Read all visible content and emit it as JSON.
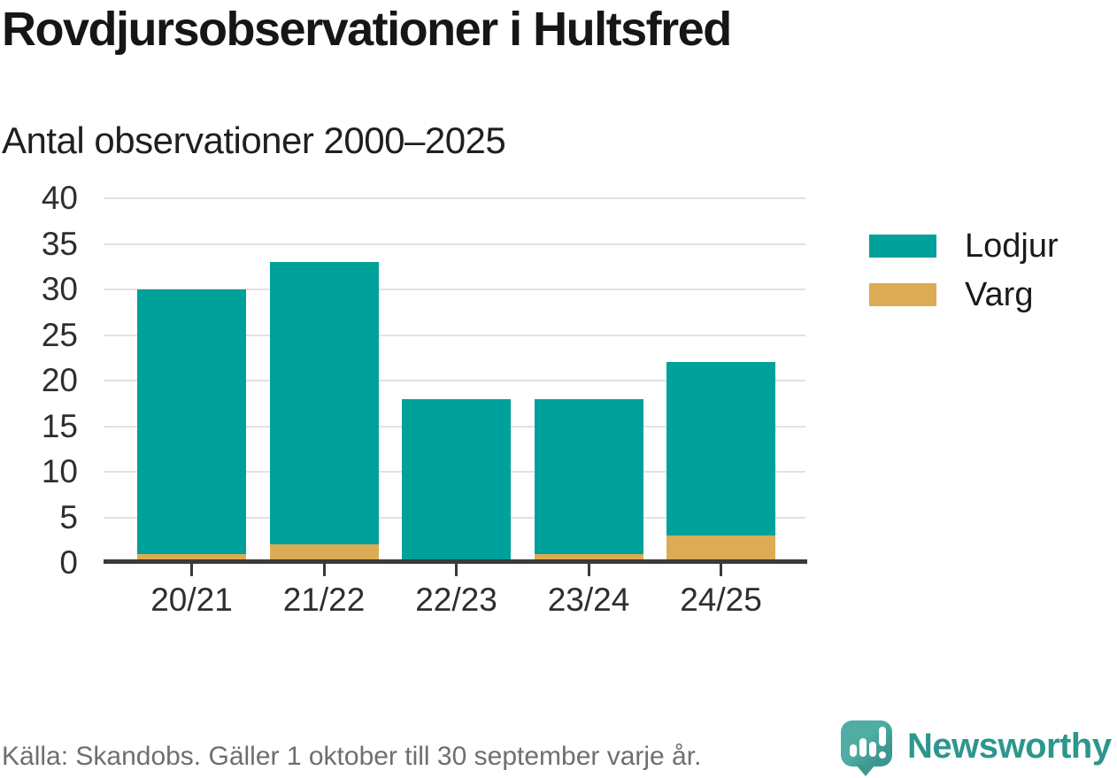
{
  "page": {
    "title": "Rovdjursobservationer i Hultsfred",
    "subtitle": "Antal observationer 2000–2025"
  },
  "legend": {
    "items": [
      {
        "label": "Lodjur",
        "color": "#00a19a"
      },
      {
        "label": "Varg",
        "color": "#dbac55"
      }
    ]
  },
  "footer": {
    "source_note": "Källa: Skandobs. Gäller 1 oktober till 30 september varje år.",
    "brand_name": "Newsworthy",
    "brand_icon": "bar-chart-exclamation-speech-bubble-icon"
  },
  "colors": {
    "lodjur": "#00a19a",
    "varg": "#dbac55",
    "grid": "#e2e2e2",
    "axis": "#3a3a3a",
    "brand_teal": "#2d968e"
  },
  "chart_data": {
    "type": "bar",
    "stacked": true,
    "title": "Rovdjursobservationer i Hultsfred",
    "subtitle": "Antal observationer 2000–2025",
    "categories": [
      "20/21",
      "21/22",
      "22/23",
      "23/24",
      "24/25"
    ],
    "series": [
      {
        "name": "Varg",
        "color": "#dbac55",
        "values": [
          1,
          2,
          0,
          1,
          3
        ]
      },
      {
        "name": "Lodjur",
        "color": "#00a19a",
        "values": [
          29,
          31,
          18,
          17,
          19
        ]
      }
    ],
    "stack_totals": [
      30,
      33,
      18,
      18,
      22
    ],
    "xlabel": "",
    "ylabel": "",
    "ylim": [
      0,
      40
    ],
    "yticks": [
      0,
      5,
      10,
      15,
      20,
      25,
      30,
      35,
      40
    ],
    "grid": true,
    "legend_position": "right",
    "source": "Källa: Skandobs. Gäller 1 oktober till 30 september varje år."
  }
}
